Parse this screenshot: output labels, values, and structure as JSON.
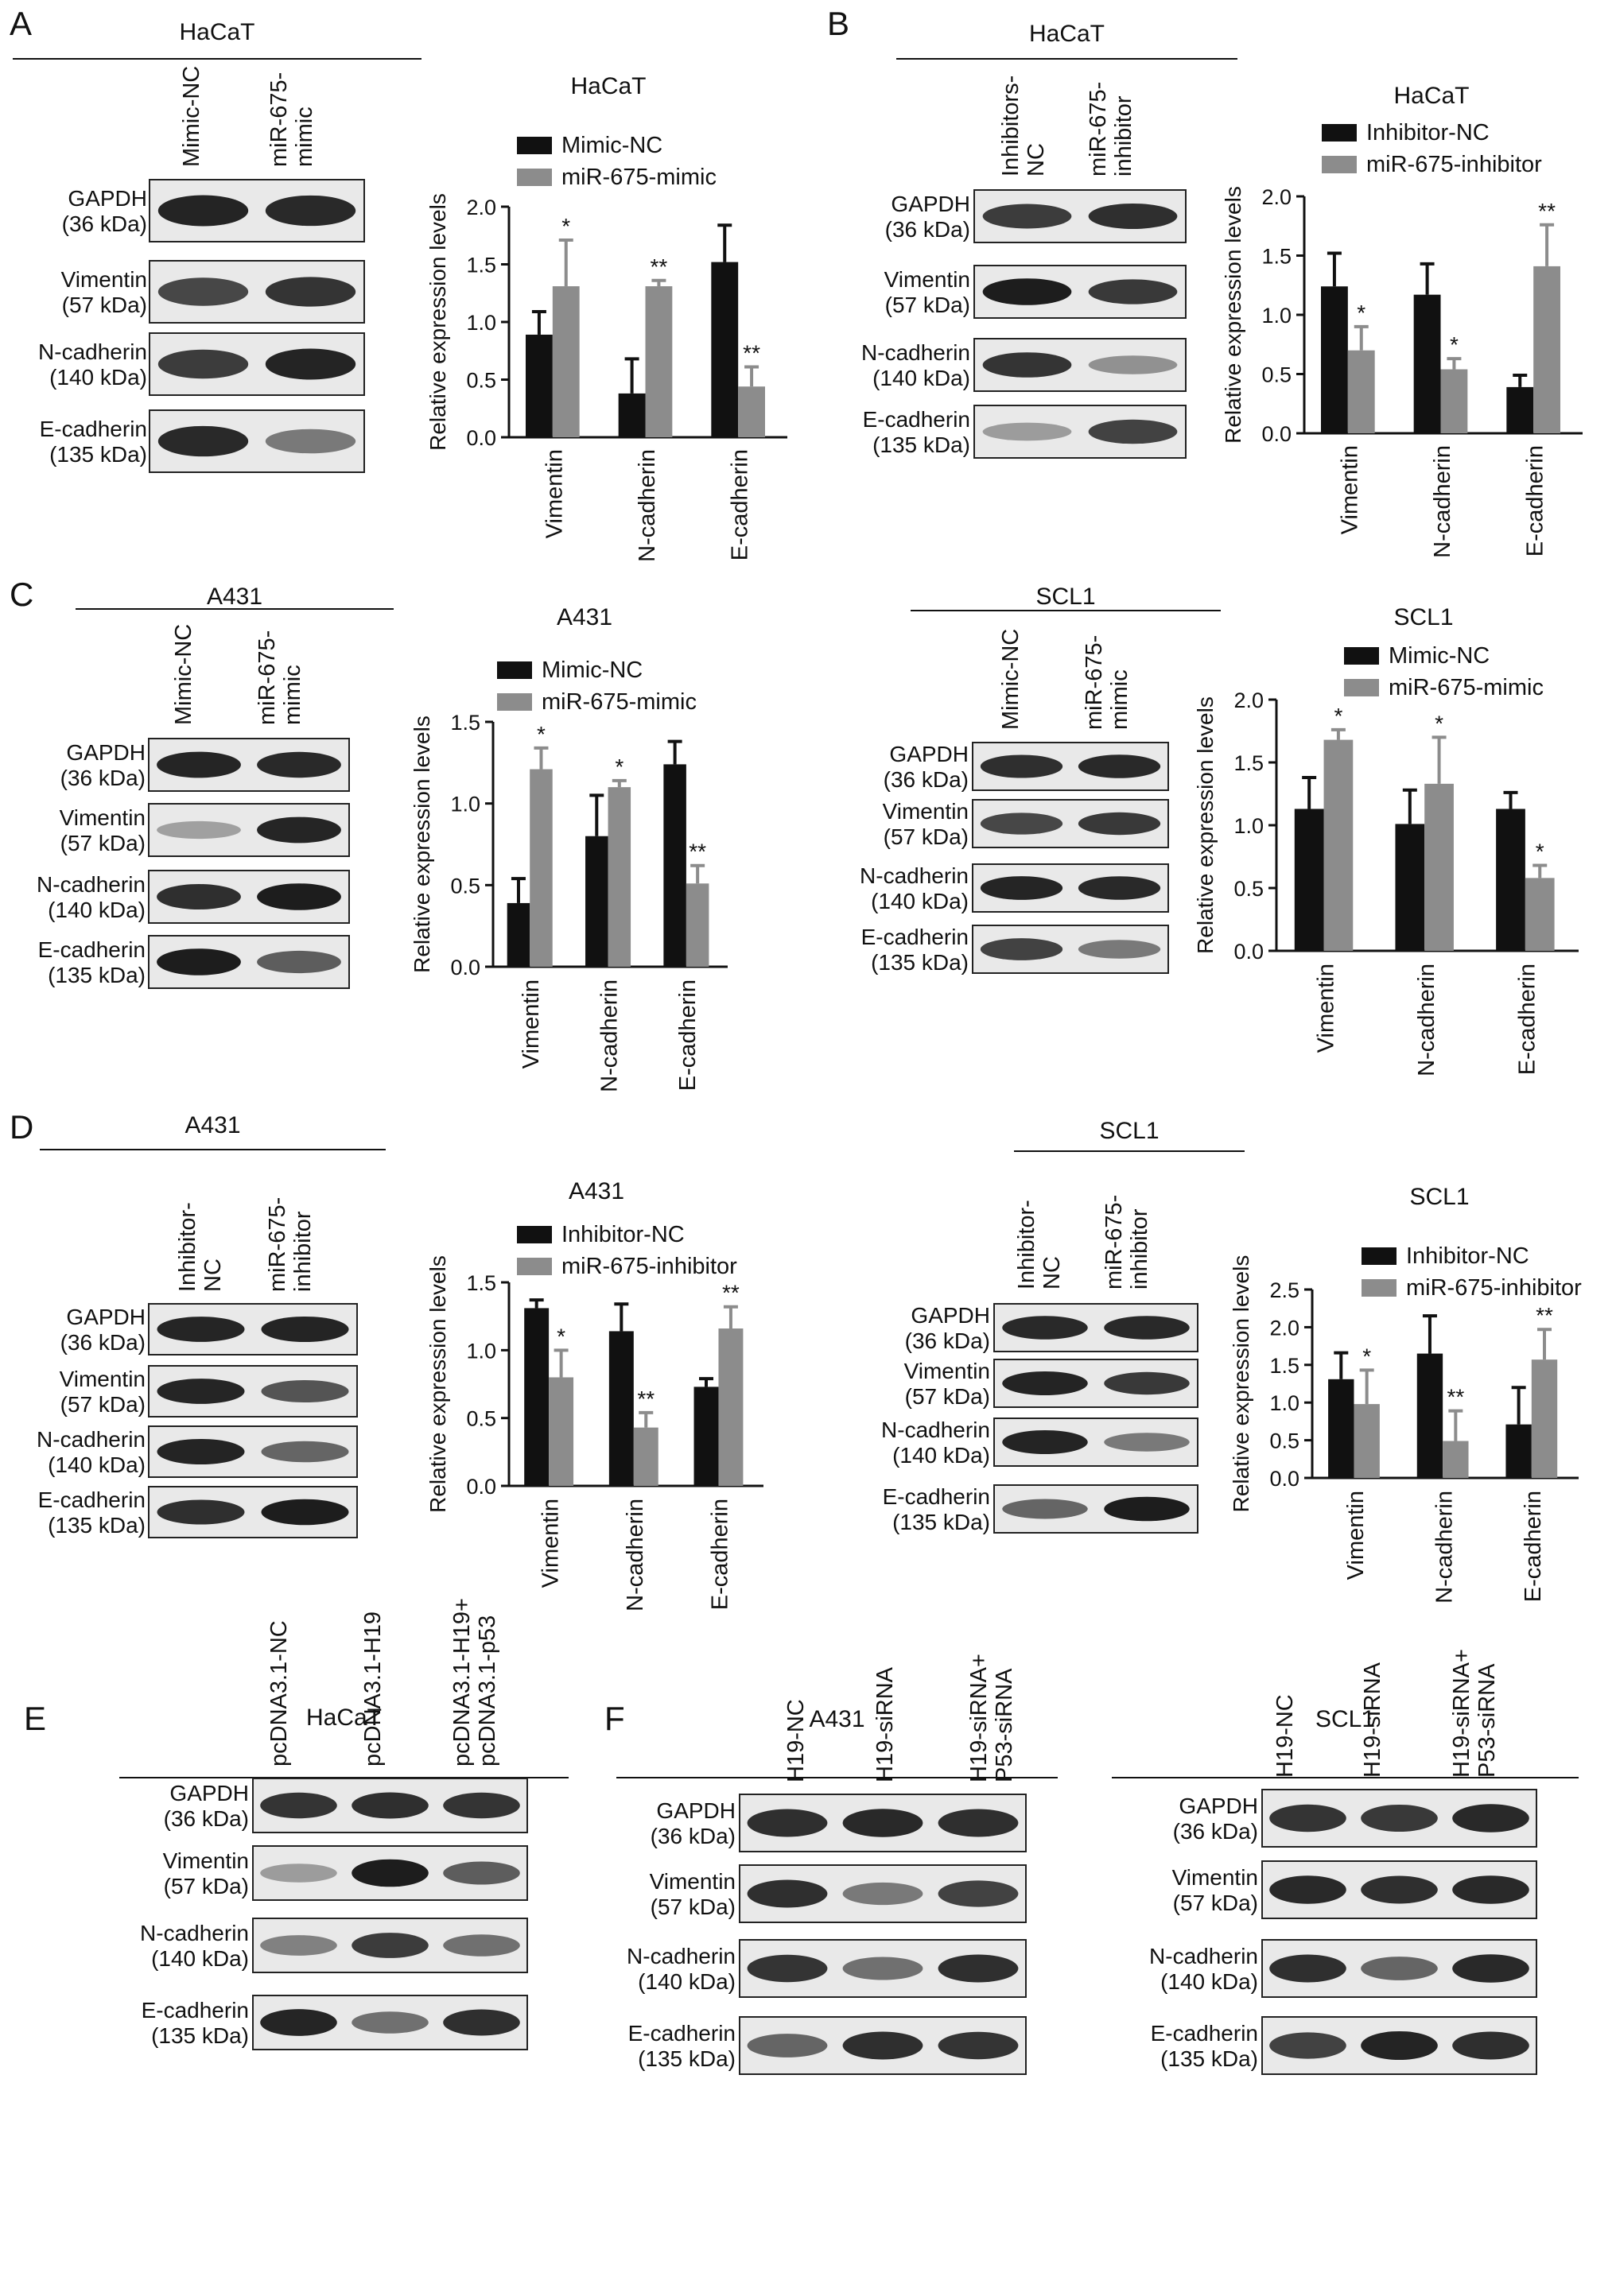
{
  "colors": {
    "black_series": "#111111",
    "gray_series": "#8c8c8c",
    "blot_bg": "#e9e9e9",
    "band": "#141414"
  },
  "panels": {
    "A": {
      "letter": "A",
      "cell": "HaCaT",
      "lanes": [
        "Mimic-NC",
        "miR-675-\nmimic"
      ],
      "blots": [
        {
          "label": "GAPDH\n(36 kDa)",
          "bands": [
            0.92,
            0.88
          ]
        },
        {
          "label": "Vimentin\n(57 kDa)",
          "bands": [
            0.72,
            0.82
          ]
        },
        {
          "label": "N-cadherin\n(140 kDa)",
          "bands": [
            0.78,
            0.92
          ]
        },
        {
          "label": "E-cadherin\n(135 kDa)",
          "bands": [
            0.88,
            0.45
          ]
        }
      ]
    },
    "B": {
      "letter": "B",
      "cell": "HaCaT",
      "lanes": [
        "Inhibitors-\nNC",
        "miR-675-\ninhibitor"
      ],
      "blots": [
        {
          "label": "GAPDH\n(36 kDa)",
          "bands": [
            0.78,
            0.85
          ]
        },
        {
          "label": "Vimentin\n(57 kDa)",
          "bands": [
            0.95,
            0.8
          ]
        },
        {
          "label": "N-cadherin\n(140 kDa)",
          "bands": [
            0.82,
            0.3
          ]
        },
        {
          "label": "E-cadherin\n(135 kDa)",
          "bands": [
            0.25,
            0.75
          ]
        }
      ]
    },
    "C1": {
      "letter": "C",
      "cell": "A431",
      "lanes": [
        "Mimic-NC",
        "miR-675-\nmimic"
      ],
      "blots": [
        {
          "label": "GAPDH\n(36 kDa)",
          "bands": [
            0.9,
            0.88
          ]
        },
        {
          "label": "Vimentin\n(57 kDa)",
          "bands": [
            0.22,
            0.9
          ]
        },
        {
          "label": "N-cadherin\n(140 kDa)",
          "bands": [
            0.85,
            0.95
          ]
        },
        {
          "label": "E-cadherin\n(135 kDa)",
          "bands": [
            0.95,
            0.6
          ]
        }
      ]
    },
    "C2": {
      "letter": "",
      "cell": "SCL1",
      "lanes": [
        "Mimic-NC",
        "miR-675-\nmimic"
      ],
      "blots": [
        {
          "label": "GAPDH\n(36 kDa)",
          "bands": [
            0.85,
            0.88
          ]
        },
        {
          "label": "Vimentin\n(57 kDa)",
          "bands": [
            0.72,
            0.8
          ]
        },
        {
          "label": "N-cadherin\n(140 kDa)",
          "bands": [
            0.9,
            0.88
          ]
        },
        {
          "label": "E-cadherin\n(135 kDa)",
          "bands": [
            0.75,
            0.45
          ]
        }
      ]
    },
    "D1": {
      "letter": "D",
      "cell": "A431",
      "lanes": [
        "Inhibitor-\nNC",
        "miR-675-\ninhibitor"
      ],
      "blots": [
        {
          "label": "GAPDH\n(36 kDa)",
          "bands": [
            0.9,
            0.92
          ]
        },
        {
          "label": "Vimentin\n(57 kDa)",
          "bands": [
            0.9,
            0.65
          ]
        },
        {
          "label": "N-cadherin\n(140 kDa)",
          "bands": [
            0.92,
            0.55
          ]
        },
        {
          "label": "E-cadherin\n(135 kDa)",
          "bands": [
            0.85,
            0.95
          ]
        }
      ]
    },
    "D2": {
      "letter": "",
      "cell": "SCL1",
      "lanes": [
        "Inhibitor-\nNC",
        "miR-675-\ninhibitor"
      ],
      "blots": [
        {
          "label": "GAPDH\n(36 kDa)",
          "bands": [
            0.88,
            0.88
          ]
        },
        {
          "label": "Vimentin\n(57 kDa)",
          "bands": [
            0.92,
            0.8
          ]
        },
        {
          "label": "N-cadherin\n(140 kDa)",
          "bands": [
            0.92,
            0.45
          ]
        },
        {
          "label": "E-cadherin\n(135 kDa)",
          "bands": [
            0.55,
            0.95
          ]
        }
      ]
    },
    "E": {
      "letter": "E",
      "cell": "HaCaT",
      "lanes": [
        "pcDNA3.1-NC",
        "pcDNA3.1-H19",
        "pcDNA3.1-H19+\npcDNA3.1-p53"
      ],
      "blots": [
        {
          "label": "GAPDH\n(36 kDa)",
          "bands": [
            0.82,
            0.85,
            0.82
          ]
        },
        {
          "label": "Vimentin\n(57 kDa)",
          "bands": [
            0.25,
            0.95,
            0.6
          ]
        },
        {
          "label": "N-cadherin\n(140 kDa)",
          "bands": [
            0.4,
            0.78,
            0.5
          ]
        },
        {
          "label": "E-cadherin\n(135 kDa)",
          "bands": [
            0.9,
            0.5,
            0.85
          ]
        }
      ]
    },
    "F1": {
      "letter": "F",
      "cell": "A431",
      "lanes": [
        "H19-NC",
        "H19-siRNA",
        "H19-siRNA+\nP53-siRNA"
      ],
      "blots": [
        {
          "label": "GAPDH\n(36 kDa)",
          "bands": [
            0.85,
            0.88,
            0.85
          ]
        },
        {
          "label": "Vimentin\n(57 kDa)",
          "bands": [
            0.85,
            0.45,
            0.75
          ]
        },
        {
          "label": "N-cadherin\n(140 kDa)",
          "bands": [
            0.82,
            0.5,
            0.85
          ]
        },
        {
          "label": "E-cadherin\n(135 kDa)",
          "bands": [
            0.55,
            0.85,
            0.82
          ]
        }
      ]
    },
    "F2": {
      "letter": "",
      "cell": "SCL1",
      "lanes": [
        "H19-NC",
        "H19-siRNA",
        "H19-siRNA+\nP53-siRNA"
      ],
      "blots": [
        {
          "label": "GAPDH\n(36 kDa)",
          "bands": [
            0.82,
            0.8,
            0.88
          ]
        },
        {
          "label": "Vimentin\n(57 kDa)",
          "bands": [
            0.88,
            0.85,
            0.88
          ]
        },
        {
          "label": "N-cadherin\n(140 kDa)",
          "bands": [
            0.85,
            0.55,
            0.88
          ]
        },
        {
          "label": "E-cadherin\n(135 kDa)",
          "bands": [
            0.75,
            0.92,
            0.85
          ]
        }
      ]
    }
  },
  "chart_data": [
    {
      "id": "A",
      "type": "bar",
      "title": "HaCaT",
      "ylabel": "Relative expression levels",
      "categories": [
        "Vimentin",
        "N-cadherin",
        "E-cadherin"
      ],
      "ylim": [
        0,
        2.0
      ],
      "yticks": [
        "0.0",
        "0.5",
        "1.0",
        "1.5",
        "2.0"
      ],
      "series": [
        {
          "name": "Mimic-NC",
          "values": [
            0.89,
            0.38,
            1.52
          ],
          "errors": [
            0.2,
            0.3,
            0.32
          ],
          "sig": [
            "",
            "",
            ""
          ]
        },
        {
          "name": "miR-675-mimic",
          "values": [
            1.31,
            1.31,
            0.44
          ],
          "errors": [
            0.4,
            0.05,
            0.17
          ],
          "sig": [
            "*",
            "**",
            "**"
          ]
        }
      ]
    },
    {
      "id": "B",
      "type": "bar",
      "title": "HaCaT",
      "ylabel": "Relative expression levels",
      "categories": [
        "Vimentin",
        "N-cadherin",
        "E-cadherin"
      ],
      "ylim": [
        0,
        2.0
      ],
      "yticks": [
        "0.0",
        "0.5",
        "1.0",
        "1.5",
        "2.0"
      ],
      "series": [
        {
          "name": "Inhibitor-NC",
          "values": [
            1.24,
            1.17,
            0.39
          ],
          "errors": [
            0.28,
            0.26,
            0.1
          ],
          "sig": [
            "",
            "",
            ""
          ]
        },
        {
          "name": "miR-675-inhibitor",
          "values": [
            0.7,
            0.54,
            1.41
          ],
          "errors": [
            0.2,
            0.09,
            0.35
          ],
          "sig": [
            "*",
            "*",
            "**"
          ]
        }
      ]
    },
    {
      "id": "C1",
      "type": "bar",
      "title": "A431",
      "ylabel": "Relative expression levels",
      "categories": [
        "Vimentin",
        "N-cadherin",
        "E-cadherin"
      ],
      "ylim": [
        0,
        1.5
      ],
      "yticks": [
        "0.0",
        "0.5",
        "1.0",
        "1.5"
      ],
      "series": [
        {
          "name": "Mimic-NC",
          "values": [
            0.39,
            0.8,
            1.24
          ],
          "errors": [
            0.15,
            0.25,
            0.14
          ],
          "sig": [
            "",
            "",
            ""
          ]
        },
        {
          "name": "miR-675-mimic",
          "values": [
            1.21,
            1.1,
            0.51
          ],
          "errors": [
            0.13,
            0.04,
            0.11
          ],
          "sig": [
            "*",
            "*",
            "**"
          ]
        }
      ]
    },
    {
      "id": "C2",
      "type": "bar",
      "title": "SCL1",
      "ylabel": "Relative expression levels",
      "categories": [
        "Vimentin",
        "N-cadherin",
        "E-cadherin"
      ],
      "ylim": [
        0,
        2.0
      ],
      "yticks": [
        "0.0",
        "0.5",
        "1.0",
        "1.5",
        "2.0"
      ],
      "series": [
        {
          "name": "Mimic-NC",
          "values": [
            1.13,
            1.01,
            1.13
          ],
          "errors": [
            0.25,
            0.27,
            0.13
          ],
          "sig": [
            "",
            "",
            ""
          ]
        },
        {
          "name": "miR-675-mimic",
          "values": [
            1.68,
            1.33,
            0.58
          ],
          "errors": [
            0.08,
            0.37,
            0.1
          ],
          "sig": [
            "*",
            "*",
            "*"
          ]
        }
      ]
    },
    {
      "id": "D1",
      "type": "bar",
      "title": "A431",
      "ylabel": "Relative expression levels",
      "categories": [
        "Vimentin",
        "N-cadherin",
        "E-cadherin"
      ],
      "ylim": [
        0,
        1.5
      ],
      "yticks": [
        "0.0",
        "0.5",
        "1.0",
        "1.5"
      ],
      "series": [
        {
          "name": "Inhibitor-NC",
          "values": [
            1.31,
            1.14,
            0.73
          ],
          "errors": [
            0.06,
            0.2,
            0.06
          ],
          "sig": [
            "",
            "",
            ""
          ]
        },
        {
          "name": "miR-675-inhibitor",
          "values": [
            0.8,
            0.43,
            1.16
          ],
          "errors": [
            0.2,
            0.11,
            0.16
          ],
          "sig": [
            "*",
            "**",
            "**"
          ]
        }
      ]
    },
    {
      "id": "D2",
      "type": "bar",
      "title": "SCL1",
      "ylabel": "Relative expression levels",
      "categories": [
        "Vimentin",
        "N-cadherin",
        "E-cadherin"
      ],
      "ylim": [
        0,
        2.5
      ],
      "yticks": [
        "0.0",
        "0.5",
        "1.0",
        "1.5",
        "2.0",
        "2.5"
      ],
      "series": [
        {
          "name": "Inhibitor-NC",
          "values": [
            1.31,
            1.65,
            0.71
          ],
          "errors": [
            0.35,
            0.5,
            0.49
          ],
          "sig": [
            "",
            "",
            ""
          ]
        },
        {
          "name": "miR-675-inhibitor",
          "values": [
            0.98,
            0.49,
            1.57
          ],
          "errors": [
            0.45,
            0.4,
            0.4
          ],
          "sig": [
            "*",
            "**",
            "**"
          ]
        }
      ]
    }
  ]
}
